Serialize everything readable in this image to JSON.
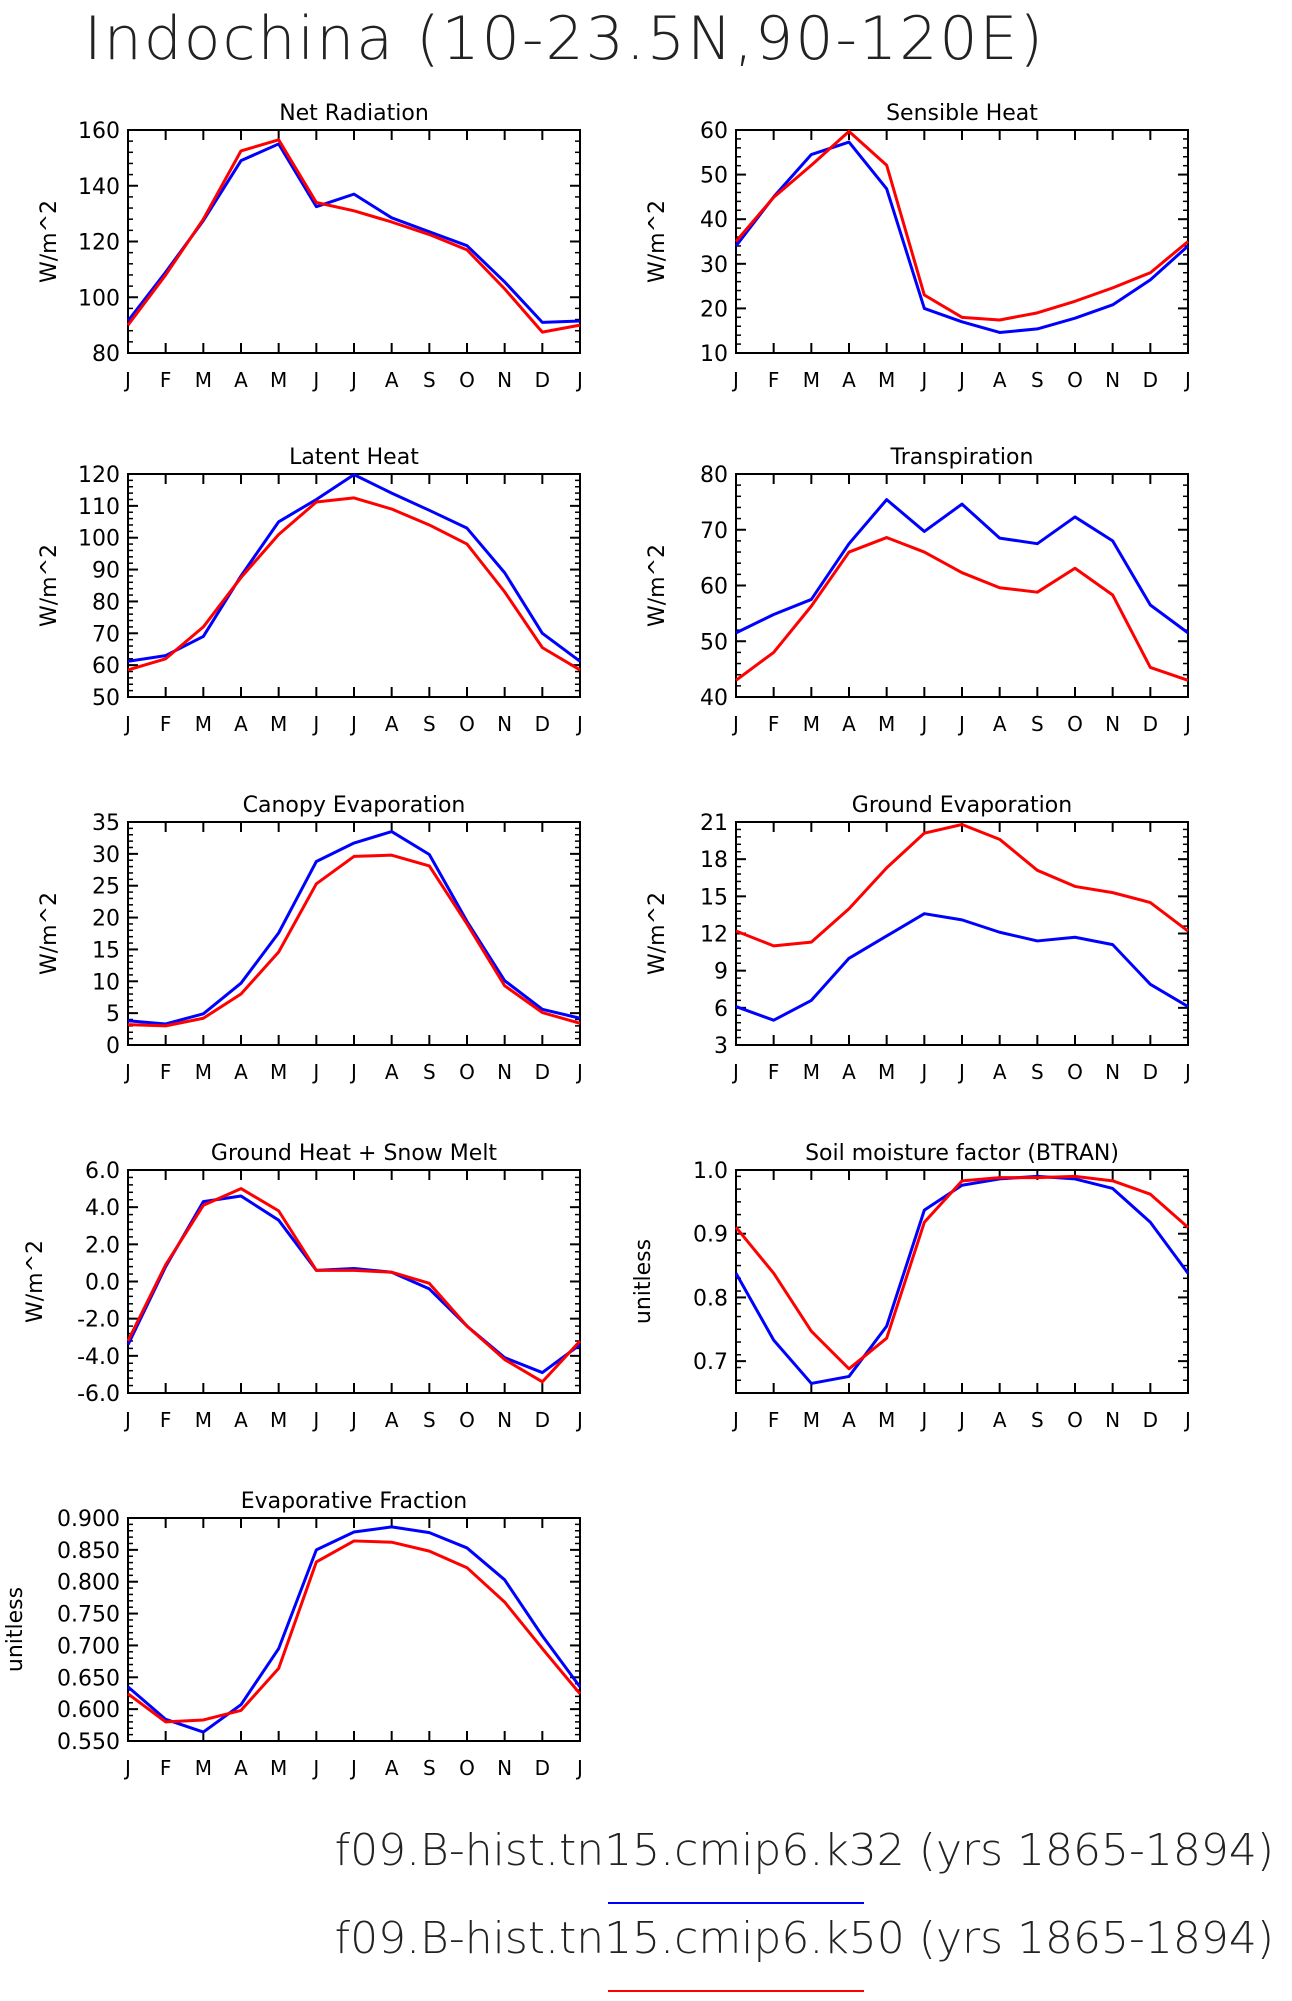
{
  "page": {
    "title": "Indochina (10-23.5N,90-120E)"
  },
  "colors": {
    "k32": "#0000ff",
    "k50": "#ff0000"
  },
  "legend": [
    {
      "name": "f09.B-hist.tn15.cmip6.k32",
      "years": "(yrs 1865-1894)",
      "color": "#0000ff"
    },
    {
      "name": "f09.B-hist.tn15.cmip6.k50",
      "years": "(yrs 1865-1894)",
      "color": "#ff0000"
    }
  ],
  "chart_data": [
    {
      "type": "line",
      "title": "Net Radiation",
      "ylabel": "W/m^2",
      "categories": [
        "J",
        "F",
        "M",
        "A",
        "M",
        "J",
        "J",
        "A",
        "S",
        "O",
        "N",
        "D",
        "J"
      ],
      "ylim": [
        80,
        160
      ],
      "yticks": [
        80,
        100,
        120,
        140,
        160
      ],
      "ytick_labels": [
        "80",
        "100",
        "120",
        "140",
        "160"
      ],
      "series": [
        {
          "name": "f09.B-hist.tn15.cmip6.k32",
          "color": "#0000ff",
          "values": [
            91.5,
            109,
            127.5,
            149,
            155,
            132.5,
            137,
            128.5,
            123.5,
            118.5,
            105.5,
            91,
            91.5
          ]
        },
        {
          "name": "f09.B-hist.tn15.cmip6.k50",
          "color": "#ff0000",
          "values": [
            90,
            108,
            128,
            152.5,
            156.5,
            134,
            131,
            127,
            122.5,
            117,
            103,
            87.5,
            90
          ]
        }
      ]
    },
    {
      "type": "line",
      "title": "Sensible Heat",
      "ylabel": "W/m^2",
      "categories": [
        "J",
        "F",
        "M",
        "A",
        "M",
        "J",
        "J",
        "A",
        "S",
        "O",
        "N",
        "D",
        "J"
      ],
      "ylim": [
        10,
        60
      ],
      "yticks": [
        10,
        20,
        30,
        40,
        50,
        60
      ],
      "ytick_labels": [
        "10",
        "20",
        "30",
        "40",
        "50",
        "60"
      ],
      "series": [
        {
          "name": "f09.B-hist.tn15.cmip6.k32",
          "color": "#0000ff",
          "values": [
            34,
            45,
            54.5,
            57.3,
            46.8,
            20,
            17,
            14.6,
            15.4,
            17.8,
            20.8,
            26.4,
            34
          ]
        },
        {
          "name": "f09.B-hist.tn15.cmip6.k50",
          "color": "#ff0000",
          "values": [
            35,
            44.9,
            52.1,
            59.7,
            52.1,
            23,
            18,
            17.4,
            19,
            21.6,
            24.6,
            28,
            35
          ]
        }
      ]
    },
    {
      "type": "line",
      "title": "Latent Heat",
      "ylabel": "W/m^2",
      "categories": [
        "J",
        "F",
        "M",
        "A",
        "M",
        "J",
        "J",
        "A",
        "S",
        "O",
        "N",
        "D",
        "J"
      ],
      "ylim": [
        50,
        120
      ],
      "yticks": [
        50,
        60,
        70,
        80,
        90,
        100,
        110,
        120
      ],
      "ytick_labels": [
        "50",
        "60",
        "70",
        "80",
        "90",
        "100",
        "110",
        "120"
      ],
      "series": [
        {
          "name": "f09.B-hist.tn15.cmip6.k32",
          "color": "#0000ff",
          "values": [
            61.2,
            63,
            69,
            88,
            105,
            112,
            119.8,
            114,
            108.6,
            103,
            89,
            70,
            61.2
          ]
        },
        {
          "name": "f09.B-hist.tn15.cmip6.k50",
          "color": "#ff0000",
          "values": [
            58.5,
            62,
            72,
            87.5,
            101,
            111.2,
            112.5,
            109,
            104,
            98,
            83,
            65.5,
            58.5
          ]
        }
      ]
    },
    {
      "type": "line",
      "title": "Transpiration",
      "ylabel": "W/m^2",
      "categories": [
        "J",
        "F",
        "M",
        "A",
        "M",
        "J",
        "J",
        "A",
        "S",
        "O",
        "N",
        "D",
        "J"
      ],
      "ylim": [
        40,
        80
      ],
      "yticks": [
        40,
        50,
        60,
        70,
        80
      ],
      "ytick_labels": [
        "40",
        "50",
        "60",
        "70",
        "80"
      ],
      "series": [
        {
          "name": "f09.B-hist.tn15.cmip6.k32",
          "color": "#0000ff",
          "values": [
            51.5,
            54.8,
            57.5,
            67.5,
            75.4,
            69.7,
            74.6,
            68.5,
            67.5,
            72.3,
            68,
            56.5,
            51.5
          ]
        },
        {
          "name": "f09.B-hist.tn15.cmip6.k50",
          "color": "#ff0000",
          "values": [
            43,
            48,
            56.3,
            66,
            68.6,
            66,
            62.3,
            59.6,
            58.8,
            63.1,
            58.3,
            45.3,
            43
          ]
        }
      ]
    },
    {
      "type": "line",
      "title": "Canopy Evaporation",
      "ylabel": "W/m^2",
      "categories": [
        "J",
        "F",
        "M",
        "A",
        "M",
        "J",
        "J",
        "A",
        "S",
        "O",
        "N",
        "D",
        "J"
      ],
      "ylim": [
        0,
        35
      ],
      "yticks": [
        0,
        5,
        10,
        15,
        20,
        25,
        30,
        35
      ],
      "ytick_labels": [
        "0",
        "5",
        "10",
        "15",
        "20",
        "25",
        "30",
        "35"
      ],
      "series": [
        {
          "name": "f09.B-hist.tn15.cmip6.k32",
          "color": "#0000ff",
          "values": [
            3.8,
            3.3,
            4.9,
            9.7,
            17.6,
            28.8,
            31.7,
            33.5,
            29.9,
            19.4,
            10.1,
            5.6,
            4.2
          ]
        },
        {
          "name": "f09.B-hist.tn15.cmip6.k50",
          "color": "#ff0000",
          "values": [
            3.2,
            3,
            4.2,
            8,
            14.6,
            25.3,
            29.6,
            29.8,
            28.1,
            19,
            9.3,
            5.1,
            3.4
          ]
        }
      ]
    },
    {
      "type": "line",
      "title": "Ground Evaporation",
      "ylabel": "W/m^2",
      "categories": [
        "J",
        "F",
        "M",
        "A",
        "M",
        "J",
        "J",
        "A",
        "S",
        "O",
        "N",
        "D",
        "J"
      ],
      "ylim": [
        3,
        21
      ],
      "yticks": [
        3,
        6,
        9,
        12,
        15,
        18,
        21
      ],
      "ytick_labels": [
        "3",
        "6",
        "9",
        "12",
        "15",
        "18",
        "21"
      ],
      "series": [
        {
          "name": "f09.B-hist.tn15.cmip6.k32",
          "color": "#0000ff",
          "values": [
            6.1,
            5,
            6.6,
            10,
            11.8,
            13.6,
            13.1,
            12.1,
            11.4,
            11.7,
            11.1,
            7.9,
            6.1
          ]
        },
        {
          "name": "f09.B-hist.tn15.cmip6.k50",
          "color": "#ff0000",
          "values": [
            12.2,
            11,
            11.3,
            14,
            17.3,
            20.1,
            20.8,
            19.6,
            17.1,
            15.8,
            15.3,
            14.5,
            12.2
          ]
        }
      ]
    },
    {
      "type": "line",
      "title": "Ground Heat + Snow Melt",
      "ylabel": "W/m^2",
      "categories": [
        "J",
        "F",
        "M",
        "A",
        "M",
        "J",
        "J",
        "A",
        "S",
        "O",
        "N",
        "D",
        "J"
      ],
      "ylim": [
        -6,
        6
      ],
      "yticks": [
        -6,
        -4,
        -2,
        0,
        2,
        4,
        6
      ],
      "ytick_labels": [
        "-6.0",
        "-4.0",
        "-2.0",
        "0.0",
        "2.0",
        "4.0",
        "6.0"
      ],
      "series": [
        {
          "name": "f09.B-hist.tn15.cmip6.k32",
          "color": "#0000ff",
          "values": [
            -3.4,
            0.8,
            4.3,
            4.6,
            3.3,
            0.6,
            0.7,
            0.5,
            -0.4,
            -2.4,
            -4.1,
            -4.9,
            -3.4
          ]
        },
        {
          "name": "f09.B-hist.tn15.cmip6.k50",
          "color": "#ff0000",
          "values": [
            -3.2,
            0.9,
            4.1,
            5,
            3.8,
            0.6,
            0.6,
            0.5,
            -0.1,
            -2.4,
            -4.2,
            -5.4,
            -3.2
          ]
        }
      ]
    },
    {
      "type": "line",
      "title": "Soil moisture factor (BTRAN)",
      "ylabel": "unitless",
      "categories": [
        "J",
        "F",
        "M",
        "A",
        "M",
        "J",
        "J",
        "A",
        "S",
        "O",
        "N",
        "D",
        "J"
      ],
      "ylim": [
        0.65,
        1.0
      ],
      "yticks": [
        0.7,
        0.8,
        0.9,
        1.0
      ],
      "ytick_labels": [
        "0.7",
        "0.8",
        "0.9",
        "1.0"
      ],
      "series": [
        {
          "name": "f09.B-hist.tn15.cmip6.k32",
          "color": "#0000ff",
          "values": [
            0.838,
            0.733,
            0.665,
            0.676,
            0.755,
            0.937,
            0.976,
            0.986,
            0.99,
            0.986,
            0.971,
            0.918,
            0.838
          ]
        },
        {
          "name": "f09.B-hist.tn15.cmip6.k50",
          "color": "#ff0000",
          "values": [
            0.91,
            0.838,
            0.747,
            0.688,
            0.736,
            0.918,
            0.983,
            0.988,
            0.988,
            0.99,
            0.983,
            0.962,
            0.91
          ]
        }
      ]
    },
    {
      "type": "line",
      "title": "Evaporative Fraction",
      "ylabel": "unitless",
      "categories": [
        "J",
        "F",
        "M",
        "A",
        "M",
        "J",
        "J",
        "A",
        "S",
        "O",
        "N",
        "D",
        "J"
      ],
      "ylim": [
        0.55,
        0.9
      ],
      "yticks": [
        0.55,
        0.6,
        0.65,
        0.7,
        0.75,
        0.8,
        0.85,
        0.9
      ],
      "ytick_labels": [
        "0.550",
        "0.600",
        "0.650",
        "0.700",
        "0.750",
        "0.800",
        "0.850",
        "0.900"
      ],
      "series": [
        {
          "name": "f09.B-hist.tn15.cmip6.k32",
          "color": "#0000ff",
          "values": [
            0.635,
            0.584,
            0.564,
            0.607,
            0.695,
            0.85,
            0.878,
            0.886,
            0.877,
            0.853,
            0.803,
            0.715,
            0.635
          ]
        },
        {
          "name": "f09.B-hist.tn15.cmip6.k50",
          "color": "#ff0000",
          "values": [
            0.624,
            0.58,
            0.583,
            0.598,
            0.664,
            0.831,
            0.864,
            0.862,
            0.848,
            0.822,
            0.768,
            0.695,
            0.624
          ]
        }
      ]
    }
  ]
}
